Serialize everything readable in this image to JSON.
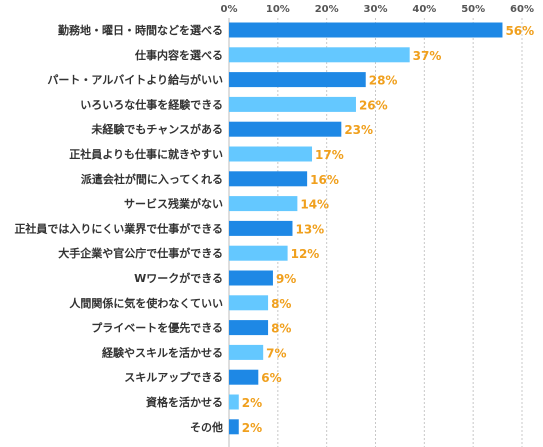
{
  "chart_data": {
    "type": "bar",
    "orientation": "horizontal",
    "categories": [
      "勤務地・曜日・時間などを選べる",
      "仕事内容を選べる",
      "パート・アルバイトより給与がいい",
      "いろいろな仕事を経験できる",
      "未経験でもチャンスがある",
      "正社員よりも仕事に就きやすい",
      "派遣会社が間に入ってくれる",
      "サービス残業がない",
      "正社員では入りにくい業界で仕事ができる",
      "大手企業や官公庁で仕事ができる",
      "Wワークができる",
      "人間関係に気を使わなくていい",
      "プライベートを優先できる",
      "経験やスキルを活かせる",
      "スキルアップできる",
      "資格を活かせる",
      "その他"
    ],
    "values": [
      56,
      37,
      28,
      26,
      23,
      17,
      16,
      14,
      13,
      12,
      9,
      8,
      8,
      7,
      6,
      2,
      2
    ],
    "value_labels": [
      "56%",
      "37%",
      "28%",
      "26%",
      "23%",
      "17%",
      "16%",
      "14%",
      "13%",
      "12%",
      "9%",
      "8%",
      "8%",
      "7%",
      "6%",
      "2%",
      "2%"
    ],
    "xticks": [
      0,
      10,
      20,
      30,
      40,
      50,
      60
    ],
    "xtick_labels": [
      "0%",
      "10%",
      "20%",
      "30%",
      "40%",
      "50%",
      "60%"
    ],
    "xlim": [
      0,
      60
    ],
    "grid": true,
    "colors": {
      "dark": "#1e88e5",
      "light": "#64c8ff",
      "value": "#f0a01e"
    },
    "bar_color_pattern": [
      "dark",
      "light"
    ]
  }
}
